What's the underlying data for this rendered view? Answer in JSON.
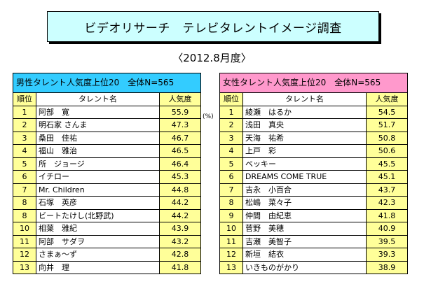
{
  "title": "ビデオリサーチ　テレビタレントイメージ調査",
  "subtitle": "〈2012.8月度〉",
  "unit_mark": "(%)",
  "male": {
    "header": "男性タレント人気度上位20　全体N=565",
    "col_rank": "順位",
    "col_name": "タレント名",
    "col_score": "人気度",
    "rows": [
      {
        "rank": "1",
        "name": "阿部　寛",
        "score": "55.9"
      },
      {
        "rank": "2",
        "name": "明石家 さんま",
        "score": "47.3"
      },
      {
        "rank": "3",
        "name": "桑田　佳祐",
        "score": "46.7"
      },
      {
        "rank": "4",
        "name": "福山　雅治",
        "score": "46.5"
      },
      {
        "rank": "5",
        "name": "所　ジョージ",
        "score": "46.4"
      },
      {
        "rank": "6",
        "name": "イチロー",
        "score": "45.3"
      },
      {
        "rank": "7",
        "name": "Mr. Children",
        "score": "44.8"
      },
      {
        "rank": "8",
        "name": "石塚　英彦",
        "score": "44.2"
      },
      {
        "rank": "8",
        "name": "ビートたけし(北野武)",
        "score": "44.2"
      },
      {
        "rank": "10",
        "name": "相葉　雅紀",
        "score": "43.9"
      },
      {
        "rank": "11",
        "name": "阿部　サダヲ",
        "score": "43.2"
      },
      {
        "rank": "12",
        "name": "さまぁ～ず",
        "score": "42.8"
      },
      {
        "rank": "13",
        "name": "向井　理",
        "score": "41.8"
      }
    ]
  },
  "female": {
    "header": "女性タレント人気度上位20　全体N=565",
    "col_rank": "順位",
    "col_name": "タレント名",
    "col_score": "人気度",
    "rows": [
      {
        "rank": "1",
        "name": "綾瀬　はるか",
        "score": "54.5"
      },
      {
        "rank": "2",
        "name": "浅田　真央",
        "score": "51.7"
      },
      {
        "rank": "3",
        "name": "天海　祐希",
        "score": "50.8"
      },
      {
        "rank": "4",
        "name": "上戸　彩",
        "score": "50.6"
      },
      {
        "rank": "5",
        "name": "ベッキー",
        "score": "45.5"
      },
      {
        "rank": "6",
        "name": "DREAMS COME TRUE",
        "score": "45.1"
      },
      {
        "rank": "7",
        "name": "吉永　小百合",
        "score": "43.7"
      },
      {
        "rank": "8",
        "name": "松嶋　菜々子",
        "score": "42.3"
      },
      {
        "rank": "9",
        "name": "仲間　由紀恵",
        "score": "41.8"
      },
      {
        "rank": "10",
        "name": "菅野　美穂",
        "score": "40.9"
      },
      {
        "rank": "11",
        "name": "吉瀬　美智子",
        "score": "39.5"
      },
      {
        "rank": "12",
        "name": "新垣　結衣",
        "score": "39.3"
      },
      {
        "rank": "13",
        "name": "いきものがかり",
        "score": "38.9"
      }
    ]
  }
}
